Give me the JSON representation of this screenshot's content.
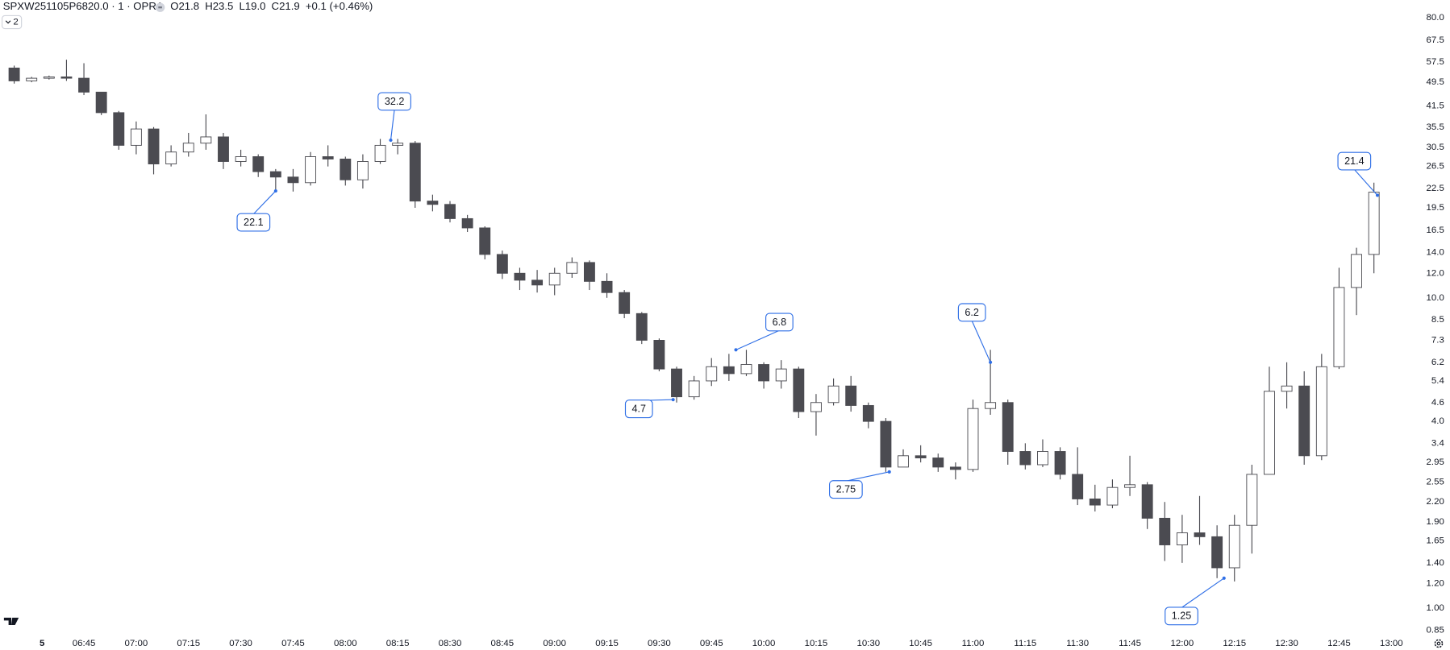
{
  "header": {
    "symbol": "SPXW251105P6820.0 · 1 · OPRA",
    "ohlc": [
      {
        "label": "O",
        "value": "21.8"
      },
      {
        "label": "H",
        "value": "23.5"
      },
      {
        "label": "L",
        "value": "19.0"
      },
      {
        "label": "C",
        "value": "21.9"
      }
    ],
    "change": "+0.1 (+0.46%)",
    "collapsed_count": "2"
  },
  "chart_data": {
    "type": "candlestick",
    "log_scale": true,
    "grid": false,
    "up_color": "#ffffff",
    "down_color": "#4b4b51",
    "outline_color": "#4b4b51",
    "annotation_color": "#2f6fe6",
    "x": [
      "06:25",
      "06:30",
      "06:35",
      "06:40",
      "06:45",
      "06:50",
      "06:55",
      "07:00",
      "07:05",
      "07:10",
      "07:15",
      "07:20",
      "07:25",
      "07:30",
      "07:35",
      "07:40",
      "07:45",
      "07:50",
      "07:55",
      "08:00",
      "08:05",
      "08:10",
      "08:15",
      "08:20",
      "08:25",
      "08:30",
      "08:35",
      "08:40",
      "08:45",
      "08:50",
      "08:55",
      "09:00",
      "09:05",
      "09:10",
      "09:15",
      "09:20",
      "09:25",
      "09:30",
      "09:35",
      "09:40",
      "09:45",
      "09:50",
      "09:55",
      "10:00",
      "10:05",
      "10:10",
      "10:15",
      "10:20",
      "10:25",
      "10:30",
      "10:35",
      "10:40",
      "10:45",
      "10:50",
      "10:55",
      "11:00",
      "11:05",
      "11:10",
      "11:15",
      "11:20",
      "11:25",
      "11:30",
      "11:35",
      "11:40",
      "11:45",
      "11:50",
      "11:55",
      "12:00",
      "12:05",
      "12:10",
      "12:15",
      "12:20",
      "12:25",
      "12:30",
      "12:35",
      "12:40",
      "12:45",
      "12:50",
      "12:55"
    ],
    "open": [
      55,
      50,
      51,
      51.5,
      51,
      46,
      39.5,
      31,
      35,
      27,
      29.5,
      31.5,
      33,
      27.5,
      28.5,
      25.5,
      24.5,
      23.5,
      28.5,
      28,
      24,
      27.5,
      31,
      31.5,
      20.5,
      20,
      18,
      16.8,
      13.8,
      12,
      11.4,
      11,
      12,
      13,
      11.3,
      10.4,
      8.9,
      7.3,
      5.9,
      4.8,
      5.4,
      6,
      5.7,
      6.1,
      5.4,
      5.9,
      4.3,
      4.6,
      5.2,
      4.5,
      4,
      2.85,
      3.1,
      3.05,
      2.85,
      2.8,
      4.4,
      4.6,
      3.2,
      2.9,
      3.2,
      2.7,
      2.25,
      2.15,
      2.45,
      2.5,
      1.95,
      1.6,
      1.75,
      1.7,
      1.35,
      1.85,
      2.7,
      5,
      5.2,
      3.1,
      6,
      10.8,
      13.8
    ],
    "high": [
      56,
      51.5,
      52,
      58.5,
      57,
      46,
      40,
      37,
      35.5,
      31,
      34,
      39,
      34,
      30,
      29,
      26,
      26,
      29.5,
      31,
      28.5,
      29,
      32.5,
      32.5,
      32,
      21.5,
      20.5,
      18.5,
      17,
      14.2,
      12.5,
      12.3,
      12.5,
      13.5,
      13.2,
      12,
      10.6,
      9,
      7.4,
      6,
      5.6,
      6.4,
      6.6,
      6.8,
      6.2,
      6.3,
      6,
      4.9,
      5.5,
      5.6,
      4.6,
      4.1,
      3.25,
      3.35,
      3.15,
      2.95,
      4.7,
      6.8,
      4.7,
      3.4,
      3.5,
      3.3,
      3.3,
      2.5,
      2.6,
      3.1,
      2.55,
      2.2,
      2,
      2.3,
      1.85,
      2,
      2.9,
      6,
      6.2,
      5.8,
      6.6,
      12.5,
      14.5,
      23.5
    ],
    "low": [
      49,
      49.5,
      50.5,
      50,
      45,
      38.8,
      30,
      29,
      25,
      26.5,
      28.5,
      30,
      26,
      26.5,
      24.5,
      22,
      22,
      23,
      26.5,
      23,
      22.5,
      27,
      29,
      19.5,
      19,
      17.5,
      16.3,
      13.3,
      11.5,
      10.6,
      10.4,
      10.2,
      11.6,
      10.6,
      10,
      8.6,
      7.1,
      5.8,
      4.6,
      4.7,
      5.2,
      5.4,
      5.6,
      5.1,
      5.1,
      4.1,
      3.6,
      4.5,
      4.3,
      3.8,
      2.75,
      2.85,
      2.95,
      2.75,
      2.6,
      2.75,
      4.2,
      2.9,
      2.8,
      2.85,
      2.6,
      2.15,
      2.05,
      2.1,
      2.3,
      1.8,
      1.42,
      1.4,
      1.6,
      1.25,
      1.22,
      1.5,
      2.7,
      4.4,
      2.9,
      3,
      5.9,
      8.8,
      12
    ],
    "close": [
      50,
      51,
      51.5,
      51,
      46,
      39.5,
      31,
      35,
      27,
      29.5,
      31.5,
      33,
      27.5,
      28.5,
      25.5,
      24.5,
      23.5,
      28.5,
      28,
      24,
      27.5,
      31,
      31.5,
      20.5,
      20,
      18,
      16.8,
      13.8,
      12,
      11.4,
      11,
      12,
      13,
      11.3,
      10.4,
      8.9,
      7.3,
      5.9,
      4.8,
      5.4,
      6,
      5.7,
      6.1,
      5.4,
      5.9,
      4.3,
      4.6,
      5.2,
      4.5,
      4,
      2.85,
      3.1,
      3.05,
      2.85,
      2.8,
      4.4,
      4.6,
      3.2,
      2.9,
      3.2,
      2.7,
      2.25,
      2.15,
      2.45,
      2.5,
      1.95,
      1.6,
      1.75,
      1.7,
      1.35,
      1.85,
      2.7,
      5,
      5.2,
      3.1,
      6,
      10.8,
      13.8,
      21.9
    ],
    "annotations": [
      {
        "x": "08:13",
        "value": 32.2
      },
      {
        "x": "07:40",
        "value": 22.1
      },
      {
        "x": "09:34",
        "value": 4.7
      },
      {
        "x": "09:52",
        "value": 6.8
      },
      {
        "x": "10:36",
        "value": 2.75
      },
      {
        "x": "11:05",
        "value": 6.2
      },
      {
        "x": "12:12",
        "value": 1.25
      },
      {
        "x": "12:56",
        "value": 21.4
      }
    ],
    "xlim": [
      "06:21",
      "13:08"
    ],
    "xticks": [
      {
        "value": "06:33",
        "label": "5"
      },
      "06:45",
      "07:00",
      "07:15",
      "07:30",
      "07:45",
      "08:00",
      "08:15",
      "08:30",
      "08:45",
      "09:00",
      "09:15",
      "09:30",
      "09:45",
      "10:00",
      "10:15",
      "10:30",
      "10:45",
      "11:00",
      "11:15",
      "11:30",
      "11:45",
      "12:00",
      "12:15",
      "12:30",
      "12:45",
      "13:00"
    ],
    "ylim": [
      0.83,
      91.1
    ],
    "yticks": [
      0.85,
      {
        "value": 1,
        "label": "1.00"
      },
      {
        "value": 1.2,
        "label": "1.20"
      },
      {
        "value": 1.4,
        "label": "1.40"
      },
      1.65,
      {
        "value": 1.9,
        "label": "1.90"
      },
      {
        "value": 2.2,
        "label": "2.20"
      },
      2.55,
      2.95,
      3.4,
      {
        "value": 4,
        "label": "4.0"
      },
      4.6,
      5.4,
      6.2,
      7.3,
      8.5,
      {
        "value": 10,
        "label": "10.0"
      },
      {
        "value": 12,
        "label": "12.0"
      },
      {
        "value": 14,
        "label": "14.0"
      },
      16.5,
      19.5,
      22.5,
      26.5,
      30.5,
      35.5,
      41.5,
      49.5,
      57.5,
      67.5,
      {
        "value": 80,
        "label": "80.0"
      }
    ]
  }
}
